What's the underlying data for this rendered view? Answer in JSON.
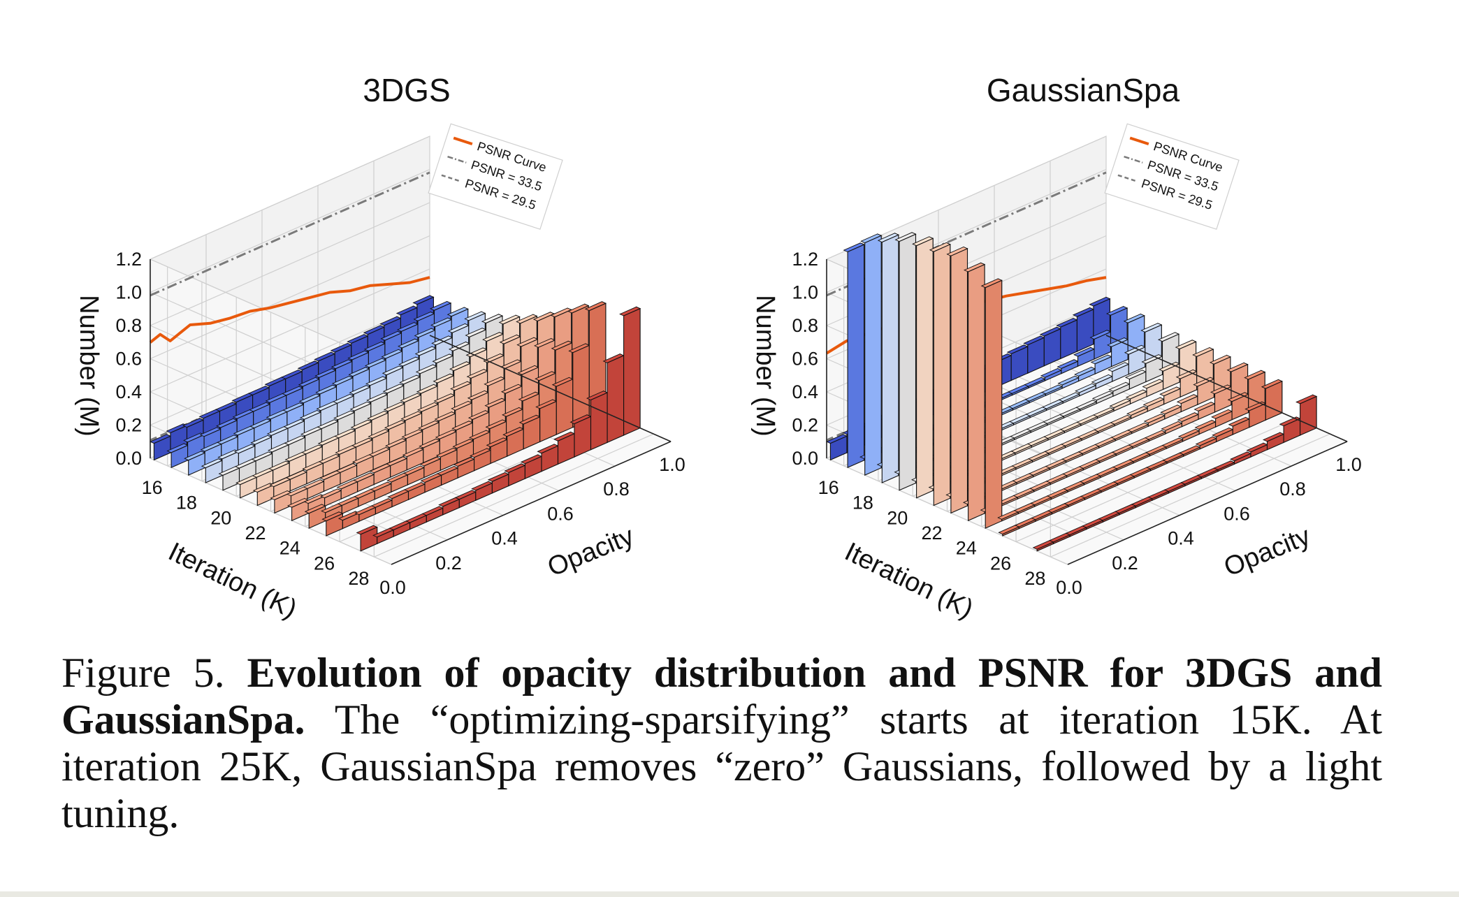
{
  "chart_data": [
    {
      "type": "bar3d",
      "title": "3DGS",
      "xlabel": "Opacity",
      "ylabel": "Iteration (K)",
      "zlabel": "Number (M)",
      "x_ticks": [
        "0.0",
        "0.2",
        "0.4",
        "0.6",
        "0.8",
        "1.0"
      ],
      "y_ticks": [
        "16",
        "18",
        "20",
        "22",
        "24",
        "26",
        "28"
      ],
      "z_ticks": [
        "0.0",
        "0.2",
        "0.4",
        "0.6",
        "0.8",
        "1.0",
        "1.2"
      ],
      "xlim": [
        0,
        1
      ],
      "ylim": [
        15,
        29
      ],
      "zlim": [
        0,
        1.2
      ],
      "series": [
        {
          "iteration": 15,
          "color": "#3a4cc0",
          "values": [
            0.1,
            0.12,
            0.11,
            0.12,
            0.12,
            0.13,
            0.13,
            0.14,
            0.14,
            0.15,
            0.16,
            0.17,
            0.18,
            0.19,
            0.2,
            0.22,
            0.24
          ]
        },
        {
          "iteration": 16,
          "color": "#5a78e0",
          "values": [
            0.09,
            0.11,
            0.1,
            0.11,
            0.12,
            0.12,
            0.13,
            0.13,
            0.14,
            0.15,
            0.16,
            0.17,
            0.18,
            0.2,
            0.21,
            0.23,
            0.25
          ]
        },
        {
          "iteration": 17,
          "color": "#8fb0f7",
          "values": [
            0.09,
            0.1,
            0.1,
            0.11,
            0.11,
            0.12,
            0.12,
            0.13,
            0.14,
            0.15,
            0.16,
            0.17,
            0.18,
            0.2,
            0.22,
            0.24,
            0.26
          ]
        },
        {
          "iteration": 18,
          "color": "#c6d5f1",
          "values": [
            0.09,
            0.1,
            0.09,
            0.1,
            0.11,
            0.11,
            0.12,
            0.13,
            0.13,
            0.14,
            0.15,
            0.17,
            0.18,
            0.2,
            0.22,
            0.25,
            0.28
          ]
        },
        {
          "iteration": 19,
          "color": "#dddcdc",
          "values": [
            0.09,
            0.09,
            0.09,
            0.1,
            0.1,
            0.11,
            0.11,
            0.12,
            0.13,
            0.14,
            0.15,
            0.16,
            0.18,
            0.2,
            0.23,
            0.27,
            0.31
          ]
        },
        {
          "iteration": 20,
          "color": "#f1d3c0",
          "values": [
            0.08,
            0.08,
            0.08,
            0.09,
            0.09,
            0.1,
            0.1,
            0.11,
            0.12,
            0.13,
            0.14,
            0.15,
            0.17,
            0.2,
            0.24,
            0.29,
            0.35
          ]
        },
        {
          "iteration": 21,
          "color": "#efbea5",
          "values": [
            0.08,
            0.07,
            0.07,
            0.08,
            0.08,
            0.09,
            0.09,
            0.1,
            0.11,
            0.12,
            0.13,
            0.14,
            0.17,
            0.2,
            0.25,
            0.32,
            0.4
          ]
        },
        {
          "iteration": 22,
          "color": "#ecad92",
          "values": [
            0.08,
            0.06,
            0.06,
            0.07,
            0.07,
            0.08,
            0.08,
            0.09,
            0.1,
            0.11,
            0.12,
            0.14,
            0.16,
            0.2,
            0.26,
            0.35,
            0.46
          ]
        },
        {
          "iteration": 23,
          "color": "#e99d82",
          "values": [
            0.08,
            0.06,
            0.05,
            0.06,
            0.06,
            0.07,
            0.07,
            0.08,
            0.09,
            0.1,
            0.11,
            0.13,
            0.16,
            0.2,
            0.27,
            0.39,
            0.53
          ]
        },
        {
          "iteration": 24,
          "color": "#e18669",
          "values": [
            0.09,
            0.05,
            0.05,
            0.05,
            0.05,
            0.06,
            0.06,
            0.07,
            0.08,
            0.09,
            0.1,
            0.12,
            0.15,
            0.2,
            0.28,
            0.42,
            0.6
          ]
        },
        {
          "iteration": 25,
          "color": "#d86f55",
          "values": [
            0.09,
            0.05,
            0.04,
            0.04,
            0.05,
            0.05,
            0.06,
            0.06,
            0.07,
            0.08,
            0.1,
            0.12,
            0.15,
            0.2,
            0.29,
            0.45,
            0.66
          ]
        },
        {
          "iteration": 27,
          "color": "#c2443a",
          "values": [
            0.1,
            0.04,
            0.04,
            0.04,
            0.04,
            0.05,
            0.05,
            0.06,
            0.07,
            0.08,
            0.09,
            0.11,
            0.14,
            0.2,
            0.3,
            0.48,
            0.72
          ]
        }
      ],
      "psnr_curve": {
        "iterations": [
          15,
          15.5,
          16,
          17,
          18,
          19,
          20,
          21,
          22,
          23,
          24,
          25,
          26,
          27,
          28,
          29
        ],
        "psnr": [
          32.2,
          32.3,
          32.0,
          32.2,
          32.0,
          31.9,
          31.85,
          31.7,
          31.6,
          31.5,
          31.4,
          31.2,
          31.1,
          30.9,
          30.7,
          30.6
        ]
      },
      "legend": {
        "labels": [
          "PSNR Curve",
          "PSNR = 33.5",
          "PSNR = 29.5"
        ],
        "placement": "top-right wall"
      }
    },
    {
      "type": "bar3d",
      "title": "GaussianSpa",
      "xlabel": "Opacity",
      "ylabel": "Iteration (K)",
      "zlabel": "Number (M)",
      "x_ticks": [
        "0.0",
        "0.2",
        "0.4",
        "0.6",
        "0.8",
        "1.0"
      ],
      "y_ticks": [
        "16",
        "18",
        "20",
        "22",
        "24",
        "26",
        "28"
      ],
      "z_ticks": [
        "0.0",
        "0.2",
        "0.4",
        "0.6",
        "0.8",
        "1.0",
        "1.2"
      ],
      "xlim": [
        0,
        1
      ],
      "ylim": [
        15,
        29
      ],
      "zlim": [
        0,
        1.2
      ],
      "series": [
        {
          "iteration": 15,
          "color": "#3a4cc0",
          "values": [
            0.1,
            0.11,
            0.11,
            0.11,
            0.12,
            0.12,
            0.13,
            0.13,
            0.14,
            0.14,
            0.15,
            0.16,
            0.17,
            0.18,
            0.19,
            0.21,
            0.23
          ]
        },
        {
          "iteration": 16,
          "color": "#5a78e0",
          "values": [
            1.3,
            0.01,
            0.01,
            0.01,
            0.01,
            0.01,
            0.01,
            0.01,
            0.01,
            0.01,
            0.01,
            0.01,
            0.02,
            0.03,
            0.06,
            0.12,
            0.22
          ]
        },
        {
          "iteration": 17,
          "color": "#8fb0f7",
          "values": [
            1.4,
            0.01,
            0.01,
            0.01,
            0.01,
            0.01,
            0.01,
            0.01,
            0.01,
            0.01,
            0.01,
            0.01,
            0.02,
            0.03,
            0.06,
            0.12,
            0.22
          ]
        },
        {
          "iteration": 18,
          "color": "#c6d5f1",
          "values": [
            1.45,
            0.01,
            0.01,
            0.01,
            0.01,
            0.01,
            0.01,
            0.01,
            0.01,
            0.01,
            0.01,
            0.01,
            0.02,
            0.03,
            0.06,
            0.12,
            0.21
          ]
        },
        {
          "iteration": 19,
          "color": "#dddcdc",
          "values": [
            1.5,
            0.01,
            0.01,
            0.01,
            0.01,
            0.01,
            0.01,
            0.01,
            0.01,
            0.01,
            0.01,
            0.01,
            0.02,
            0.03,
            0.06,
            0.11,
            0.2
          ]
        },
        {
          "iteration": 20,
          "color": "#f1d3c0",
          "values": [
            1.52,
            0.01,
            0.01,
            0.01,
            0.01,
            0.01,
            0.01,
            0.01,
            0.01,
            0.01,
            0.01,
            0.01,
            0.02,
            0.03,
            0.05,
            0.11,
            0.2
          ]
        },
        {
          "iteration": 21,
          "color": "#efbea5",
          "values": [
            1.53,
            0.01,
            0.01,
            0.01,
            0.01,
            0.01,
            0.01,
            0.01,
            0.01,
            0.01,
            0.01,
            0.01,
            0.02,
            0.03,
            0.05,
            0.11,
            0.2
          ]
        },
        {
          "iteration": 22,
          "color": "#ecad92",
          "values": [
            1.55,
            0.01,
            0.01,
            0.01,
            0.01,
            0.01,
            0.01,
            0.01,
            0.01,
            0.01,
            0.01,
            0.01,
            0.02,
            0.03,
            0.05,
            0.11,
            0.2
          ]
        },
        {
          "iteration": 23,
          "color": "#e99d82",
          "values": [
            1.5,
            0.01,
            0.01,
            0.01,
            0.01,
            0.01,
            0.01,
            0.01,
            0.01,
            0.01,
            0.01,
            0.01,
            0.02,
            0.03,
            0.05,
            0.11,
            0.2
          ]
        },
        {
          "iteration": 24,
          "color": "#e18669",
          "values": [
            1.45,
            0.01,
            0.01,
            0.01,
            0.01,
            0.01,
            0.01,
            0.01,
            0.01,
            0.01,
            0.01,
            0.01,
            0.02,
            0.03,
            0.05,
            0.11,
            0.2
          ]
        },
        {
          "iteration": 25,
          "color": "#d86f55",
          "values": [
            0.01,
            0.01,
            0.01,
            0.01,
            0.01,
            0.01,
            0.01,
            0.01,
            0.01,
            0.01,
            0.01,
            0.01,
            0.02,
            0.03,
            0.05,
            0.1,
            0.19
          ]
        },
        {
          "iteration": 27,
          "color": "#c2443a",
          "values": [
            0.01,
            0.01,
            0.01,
            0.01,
            0.01,
            0.01,
            0.01,
            0.01,
            0.01,
            0.01,
            0.01,
            0.01,
            0.02,
            0.03,
            0.05,
            0.1,
            0.19
          ]
        }
      ],
      "psnr_curve": {
        "iterations": [
          15,
          16,
          17,
          18,
          19,
          20,
          21,
          22,
          23,
          24,
          25,
          26,
          27,
          28,
          29
        ],
        "psnr": [
          31.9,
          32.0,
          31.95,
          31.9,
          31.8,
          31.7,
          31.65,
          31.5,
          31.4,
          31.3,
          31.15,
          31.0,
          30.85,
          30.75,
          30.6
        ]
      },
      "legend": {
        "labels": [
          "PSNR Curve",
          "PSNR = 33.5",
          "PSNR = 29.5"
        ],
        "placement": "top-right wall"
      }
    }
  ],
  "styles": {
    "psnr_color": "#e8590c",
    "ref_line_color": "#7a7a7a",
    "pane_color": "#f2f2f2",
    "grid_color": "#cfcfcf"
  },
  "caption": {
    "label": "Figure 5. ",
    "bold": "Evolution of opacity distribution and PSNR for 3DGS and GaussianSpa.",
    "text": " The “optimizing-sparsifying” starts at iteration 15K. At iteration 25K, GaussianSpa removes “zero” Gaussians, followed by a light tuning."
  }
}
